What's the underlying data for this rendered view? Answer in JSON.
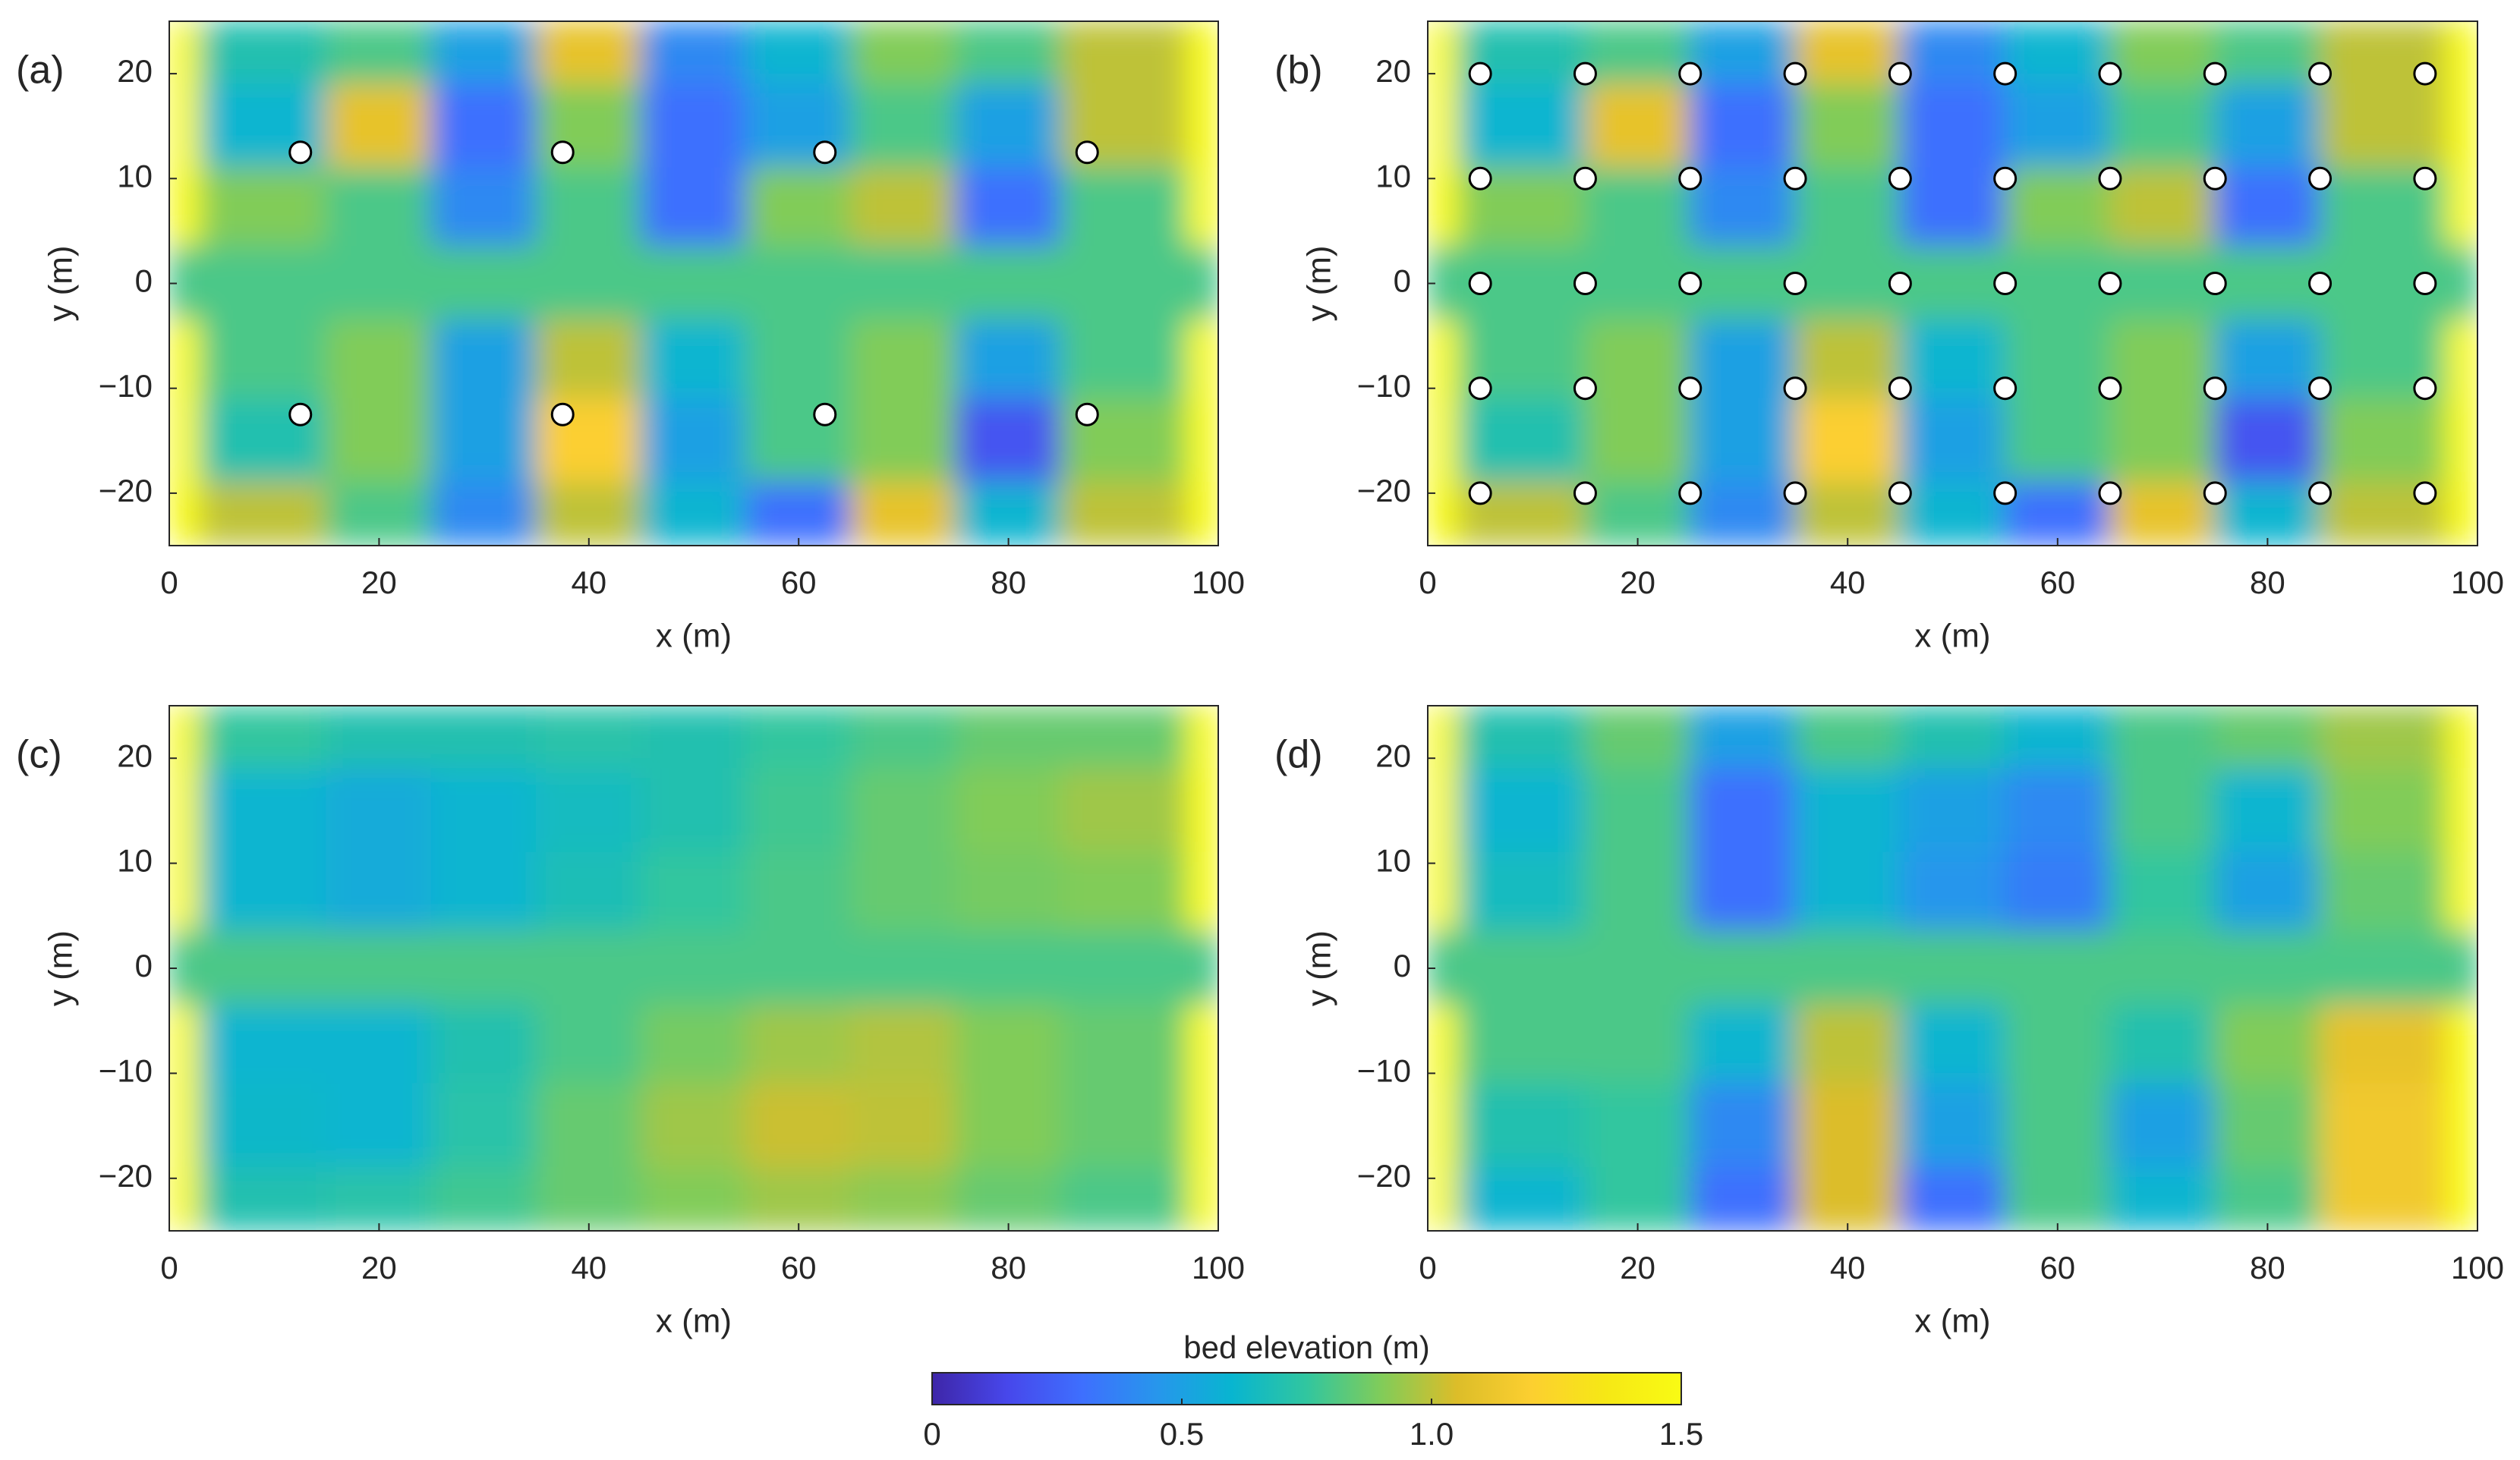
{
  "chart_data": [
    {
      "type": "heatmap",
      "label": "(a)",
      "xlabel": "x (m)",
      "ylabel": "y (m)",
      "xlim": [
        0,
        100
      ],
      "ylim": [
        -25,
        25
      ],
      "xticks": [
        0,
        20,
        40,
        60,
        80,
        100
      ],
      "yticks": [
        {
          "value": -20,
          "label": "−20"
        },
        {
          "value": -10,
          "label": "−10"
        },
        0,
        10,
        20
      ],
      "x": [
        1.5,
        10,
        20,
        30,
        40,
        50,
        60,
        70,
        80,
        90,
        98.5
      ],
      "y": [
        22,
        15,
        7,
        0,
        -7,
        -15,
        -22
      ],
      "z": [
        [
          1.5,
          0.7,
          0.8,
          0.5,
          1.1,
          0.4,
          0.6,
          0.9,
          0.8,
          1.0,
          1.5
        ],
        [
          1.5,
          0.6,
          1.1,
          0.3,
          0.9,
          0.3,
          0.5,
          0.8,
          0.5,
          1.0,
          1.5
        ],
        [
          1.5,
          0.9,
          0.8,
          0.4,
          0.8,
          0.3,
          0.9,
          1.0,
          0.3,
          0.8,
          1.5
        ],
        [
          0.8,
          0.8,
          0.8,
          0.8,
          0.8,
          0.8,
          0.8,
          0.8,
          0.8,
          0.8,
          0.8
        ],
        [
          1.5,
          0.8,
          0.9,
          0.5,
          1.0,
          0.6,
          0.8,
          0.9,
          0.5,
          0.8,
          1.5
        ],
        [
          1.5,
          0.7,
          0.9,
          0.5,
          1.2,
          0.5,
          0.8,
          0.9,
          0.2,
          0.9,
          1.5
        ],
        [
          1.5,
          1.0,
          0.8,
          0.4,
          1.0,
          0.6,
          0.3,
          1.1,
          0.6,
          1.0,
          1.5
        ]
      ],
      "points": {
        "x": [
          12.5,
          37.5,
          62.5,
          87.5,
          12.5,
          37.5,
          62.5,
          87.5
        ],
        "y": [
          12.5,
          12.5,
          12.5,
          12.5,
          -12.5,
          -12.5,
          -12.5,
          -12.5
        ],
        "color": "#ffffff"
      }
    },
    {
      "type": "heatmap",
      "label": "(b)",
      "xlabel": "x (m)",
      "ylabel": "y (m)",
      "xlim": [
        0,
        100
      ],
      "ylim": [
        -25,
        25
      ],
      "xticks": [
        0,
        20,
        40,
        60,
        80,
        100
      ],
      "yticks": [
        {
          "value": -20,
          "label": "−20"
        },
        {
          "value": -10,
          "label": "−10"
        },
        0,
        10,
        20
      ],
      "x": [
        1.5,
        10,
        20,
        30,
        40,
        50,
        60,
        70,
        80,
        90,
        98.5
      ],
      "y": [
        22,
        15,
        7,
        0,
        -7,
        -15,
        -22
      ],
      "z": [
        [
          1.5,
          0.7,
          0.8,
          0.5,
          1.1,
          0.4,
          0.6,
          0.9,
          0.8,
          1.0,
          1.5
        ],
        [
          1.5,
          0.6,
          1.1,
          0.3,
          0.9,
          0.3,
          0.5,
          0.8,
          0.5,
          1.0,
          1.5
        ],
        [
          1.5,
          0.9,
          0.8,
          0.4,
          0.8,
          0.3,
          0.9,
          1.0,
          0.3,
          0.8,
          1.5
        ],
        [
          0.8,
          0.8,
          0.8,
          0.8,
          0.8,
          0.8,
          0.8,
          0.8,
          0.8,
          0.8,
          0.8
        ],
        [
          1.5,
          0.8,
          0.9,
          0.5,
          1.0,
          0.6,
          0.8,
          0.9,
          0.5,
          0.8,
          1.5
        ],
        [
          1.5,
          0.7,
          0.9,
          0.5,
          1.2,
          0.5,
          0.8,
          0.9,
          0.2,
          0.9,
          1.5
        ],
        [
          1.5,
          1.0,
          0.8,
          0.4,
          1.0,
          0.6,
          0.3,
          1.1,
          0.6,
          1.0,
          1.5
        ]
      ],
      "points": {
        "x": [
          5,
          15,
          25,
          35,
          45,
          55,
          65,
          75,
          85,
          95,
          5,
          15,
          25,
          35,
          45,
          55,
          65,
          75,
          85,
          95,
          5,
          15,
          25,
          35,
          45,
          55,
          65,
          75,
          85,
          95,
          5,
          15,
          25,
          35,
          45,
          55,
          65,
          75,
          85,
          95,
          5,
          15,
          25,
          35,
          45,
          55,
          65,
          75,
          85,
          95
        ],
        "y": [
          20,
          20,
          20,
          20,
          20,
          20,
          20,
          20,
          20,
          20,
          10,
          10,
          10,
          10,
          10,
          10,
          10,
          10,
          10,
          10,
          0,
          0,
          0,
          0,
          0,
          0,
          0,
          0,
          0,
          0,
          -10,
          -10,
          -10,
          -10,
          -10,
          -10,
          -10,
          -10,
          -10,
          -10,
          -20,
          -20,
          -20,
          -20,
          -20,
          -20,
          -20,
          -20,
          -20,
          -20
        ],
        "color": "#ffffff"
      }
    },
    {
      "type": "heatmap",
      "label": "(c)",
      "xlabel": "x (m)",
      "ylabel": "y (m)",
      "xlim": [
        0,
        100
      ],
      "ylim": [
        -25,
        25
      ],
      "xticks": [
        0,
        20,
        40,
        60,
        80,
        100
      ],
      "yticks": [
        {
          "value": -20,
          "label": "−20"
        },
        {
          "value": -10,
          "label": "−10"
        },
        0,
        10,
        20
      ],
      "x": [
        1.5,
        10,
        20,
        30,
        40,
        50,
        60,
        70,
        80,
        90,
        98.5
      ],
      "y": [
        22,
        15,
        7,
        0,
        -7,
        -15,
        -22
      ],
      "z": [
        [
          1.5,
          0.75,
          0.7,
          0.7,
          0.72,
          0.7,
          0.75,
          0.8,
          0.85,
          0.85,
          1.5
        ],
        [
          1.5,
          0.6,
          0.55,
          0.6,
          0.65,
          0.7,
          0.78,
          0.85,
          0.9,
          0.95,
          1.5
        ],
        [
          1.5,
          0.6,
          0.55,
          0.6,
          0.68,
          0.75,
          0.8,
          0.85,
          0.88,
          0.9,
          1.5
        ],
        [
          0.8,
          0.8,
          0.8,
          0.8,
          0.8,
          0.8,
          0.8,
          0.8,
          0.8,
          0.8,
          0.8
        ],
        [
          1.5,
          0.6,
          0.6,
          0.7,
          0.8,
          0.88,
          0.95,
          0.98,
          0.9,
          0.85,
          1.5
        ],
        [
          1.5,
          0.62,
          0.6,
          0.72,
          0.85,
          0.95,
          1.02,
          1.0,
          0.9,
          0.85,
          1.5
        ],
        [
          1.5,
          0.7,
          0.72,
          0.78,
          0.85,
          0.9,
          0.95,
          0.92,
          0.85,
          0.8,
          1.5
        ]
      ]
    },
    {
      "type": "heatmap",
      "label": "(d)",
      "xlabel": "x (m)",
      "ylabel": "y (m)",
      "xlim": [
        0,
        100
      ],
      "ylim": [
        -25,
        25
      ],
      "xticks": [
        0,
        20,
        40,
        60,
        80,
        100
      ],
      "yticks": [
        {
          "value": -20,
          "label": "−20"
        },
        {
          "value": -10,
          "label": "−10"
        },
        0,
        10,
        20
      ],
      "x": [
        1.5,
        10,
        20,
        30,
        40,
        50,
        60,
        70,
        80,
        90,
        98.5
      ],
      "y": [
        22,
        15,
        7,
        0,
        -7,
        -15,
        -22
      ],
      "z": [
        [
          1.5,
          0.7,
          0.85,
          0.5,
          0.8,
          0.7,
          0.6,
          0.8,
          0.85,
          0.95,
          1.5
        ],
        [
          1.5,
          0.6,
          0.8,
          0.3,
          0.6,
          0.5,
          0.4,
          0.8,
          0.6,
          0.9,
          1.5
        ],
        [
          1.5,
          0.65,
          0.8,
          0.3,
          0.6,
          0.45,
          0.35,
          0.75,
          0.5,
          0.85,
          1.5
        ],
        [
          0.8,
          0.8,
          0.8,
          0.8,
          0.8,
          0.8,
          0.8,
          0.8,
          0.8,
          0.8,
          0.8
        ],
        [
          1.5,
          0.8,
          0.8,
          0.6,
          1.0,
          0.6,
          0.8,
          0.7,
          0.9,
          1.1,
          1.5
        ],
        [
          1.5,
          0.7,
          0.75,
          0.4,
          1.05,
          0.5,
          0.8,
          0.5,
          0.85,
          1.15,
          1.5
        ],
        [
          1.5,
          0.6,
          0.75,
          0.3,
          1.05,
          0.3,
          0.8,
          0.6,
          0.8,
          1.15,
          1.5
        ]
      ]
    },
    {
      "type": "colorbar",
      "label": "bed elevation (m)",
      "clim": [
        0,
        1.5
      ],
      "ticks": [
        0,
        0.5,
        {
          "value": 1,
          "label": "1.0"
        },
        1.5
      ],
      "colormap": [
        "#3e26a8",
        "#4747eb",
        "#3e6ffe",
        "#2796ec",
        "#08b5d0",
        "#31c69f",
        "#81cc59",
        "#dcbd29",
        "#fccf30",
        "#f6e815",
        "#f9fb14"
      ]
    }
  ]
}
